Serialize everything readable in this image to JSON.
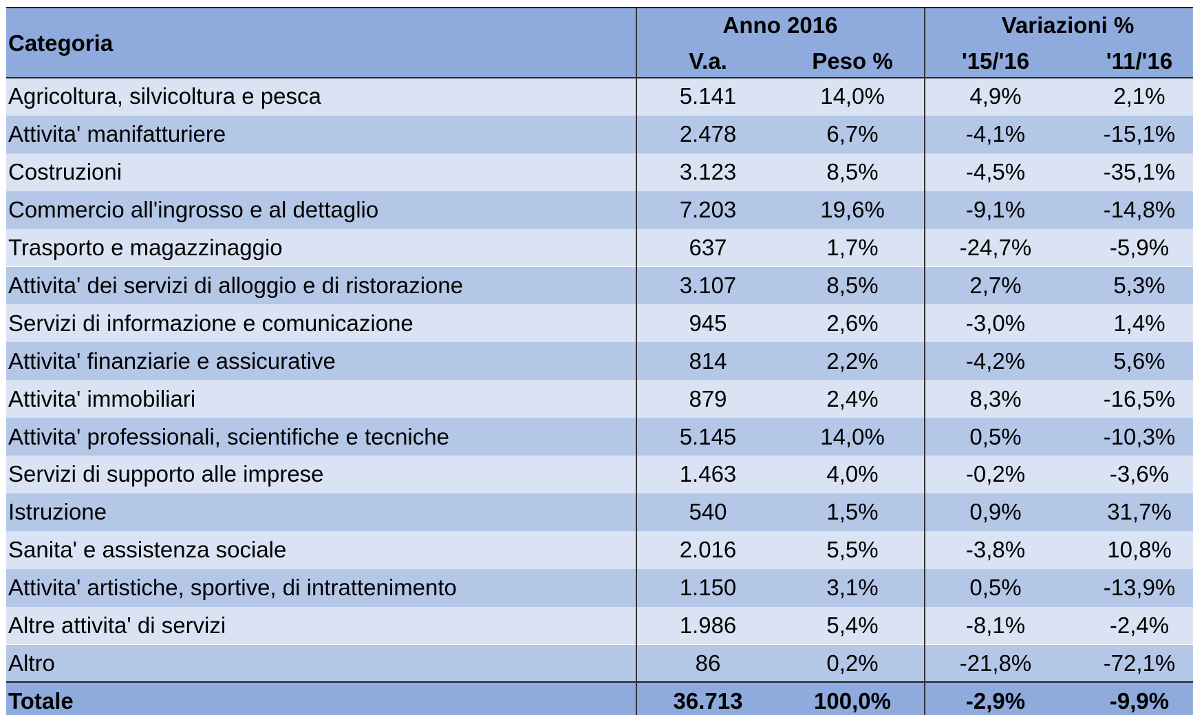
{
  "header": {
    "category": "Categoria",
    "group1": "Anno 2016",
    "group2": "Variazioni %",
    "columns": [
      "V.a.",
      "Peso %",
      "'15/'16",
      "'11/'16"
    ]
  },
  "table": {
    "rows": [
      [
        "Agricoltura, silvicoltura e pesca",
        "5.141",
        "14,0%",
        "4,9%",
        "2,1%"
      ],
      [
        "Attivita' manifatturiere",
        "2.478",
        "6,7%",
        "-4,1%",
        "-15,1%"
      ],
      [
        "Costruzioni",
        "3.123",
        "8,5%",
        "-4,5%",
        "-35,1%"
      ],
      [
        "Commercio all'ingrosso e al dettaglio",
        "7.203",
        "19,6%",
        "-9,1%",
        "-14,8%"
      ],
      [
        "Trasporto e magazzinaggio",
        "637",
        "1,7%",
        "-24,7%",
        "-5,9%"
      ],
      [
        "Attivita' dei servizi di alloggio e di ristorazione",
        "3.107",
        "8,5%",
        "2,7%",
        "5,3%"
      ],
      [
        "Servizi di informazione e comunicazione",
        "945",
        "2,6%",
        "-3,0%",
        "1,4%"
      ],
      [
        "Attivita' finanziarie e assicurative",
        "814",
        "2,2%",
        "-4,2%",
        "5,6%"
      ],
      [
        "Attivita' immobiliari",
        "879",
        "2,4%",
        "8,3%",
        "-16,5%"
      ],
      [
        "Attivita' professionali, scientifiche e tecniche",
        "5.145",
        "14,0%",
        "0,5%",
        "-10,3%"
      ],
      [
        "Servizi di supporto alle imprese",
        "1.463",
        "4,0%",
        "-0,2%",
        "-3,6%"
      ],
      [
        "Istruzione",
        "540",
        "1,5%",
        "0,9%",
        "31,7%"
      ],
      [
        "Sanita' e assistenza sociale",
        "2.016",
        "5,5%",
        "-3,8%",
        "10,8%"
      ],
      [
        "Attivita' artistiche, sportive, di intrattenimento",
        "1.150",
        "3,1%",
        "0,5%",
        "-13,9%"
      ],
      [
        "Altre attivita' di servizi",
        "1.986",
        "5,4%",
        "-8,1%",
        "-2,4%"
      ],
      [
        "Altro",
        "86",
        "0,2%",
        "-21,8%",
        "-72,1%"
      ]
    ],
    "total": [
      "Totale",
      "36.713",
      "100,0%",
      "-2,9%",
      "-9,9%"
    ]
  }
}
